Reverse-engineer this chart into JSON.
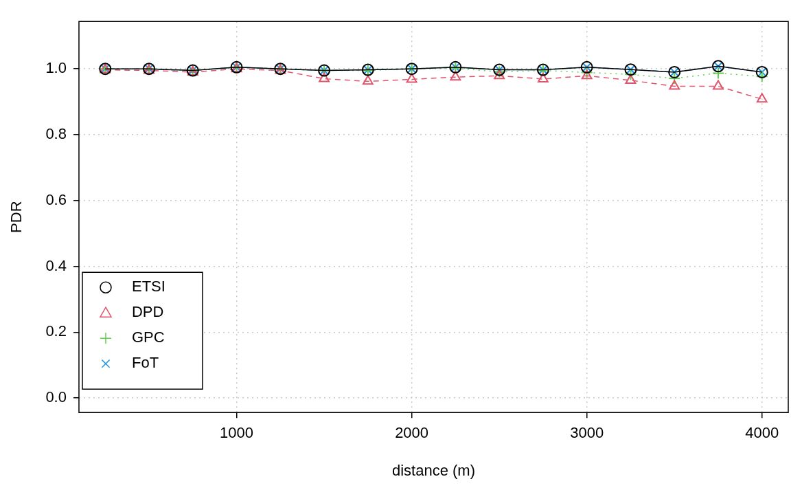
{
  "chart_data": {
    "type": "line",
    "xlabel": "distance (m)",
    "ylabel": "PDR",
    "x": [
      250,
      500,
      750,
      1000,
      1250,
      1500,
      1750,
      2000,
      2250,
      2500,
      2750,
      3000,
      3250,
      3500,
      3750,
      4000
    ],
    "xlim": [
      100,
      4150
    ],
    "xticks": [
      1000,
      2000,
      3000,
      4000
    ],
    "ylim": [
      -0.044,
      1.144
    ],
    "yticks": [
      {
        "value": 0,
        "label": "0.0"
      },
      0.2,
      0.4,
      0.6,
      0.8,
      {
        "value": 1,
        "label": "1.0"
      }
    ],
    "grid": true,
    "legend": "bottom left",
    "series": [
      {
        "name": "ETSI",
        "color": "#000000",
        "marker": "circle",
        "line_style": "solid",
        "values": [
          1.0,
          1.0,
          0.995,
          1.005,
          1.0,
          0.995,
          0.997,
          1.0,
          1.005,
          0.997,
          0.997,
          1.005,
          0.998,
          0.99,
          1.008,
          0.99
        ]
      },
      {
        "name": "DPD",
        "color": "#df536b",
        "marker": "triangle",
        "line_style": "dashed",
        "values": [
          0.997,
          0.995,
          0.99,
          1.0,
          0.995,
          0.97,
          0.962,
          0.968,
          0.975,
          0.979,
          0.969,
          0.979,
          0.965,
          0.947,
          0.947,
          0.908
        ]
      },
      {
        "name": "GPC",
        "color": "#61d04f",
        "marker": "cross",
        "line_style": "dotted",
        "values": [
          1.0,
          1.0,
          0.995,
          1.005,
          1.0,
          0.995,
          0.995,
          1.0,
          1.002,
          0.991,
          0.995,
          0.989,
          0.983,
          0.971,
          0.987,
          0.977
        ]
      },
      {
        "name": "FoT",
        "color": "#2297e6",
        "marker": "x",
        "line_style": "dashdot",
        "values": [
          1.0,
          1.0,
          0.995,
          1.005,
          1.0,
          0.995,
          0.997,
          1.0,
          1.005,
          0.997,
          0.997,
          1.005,
          0.998,
          0.99,
          1.008,
          0.99
        ]
      }
    ]
  }
}
